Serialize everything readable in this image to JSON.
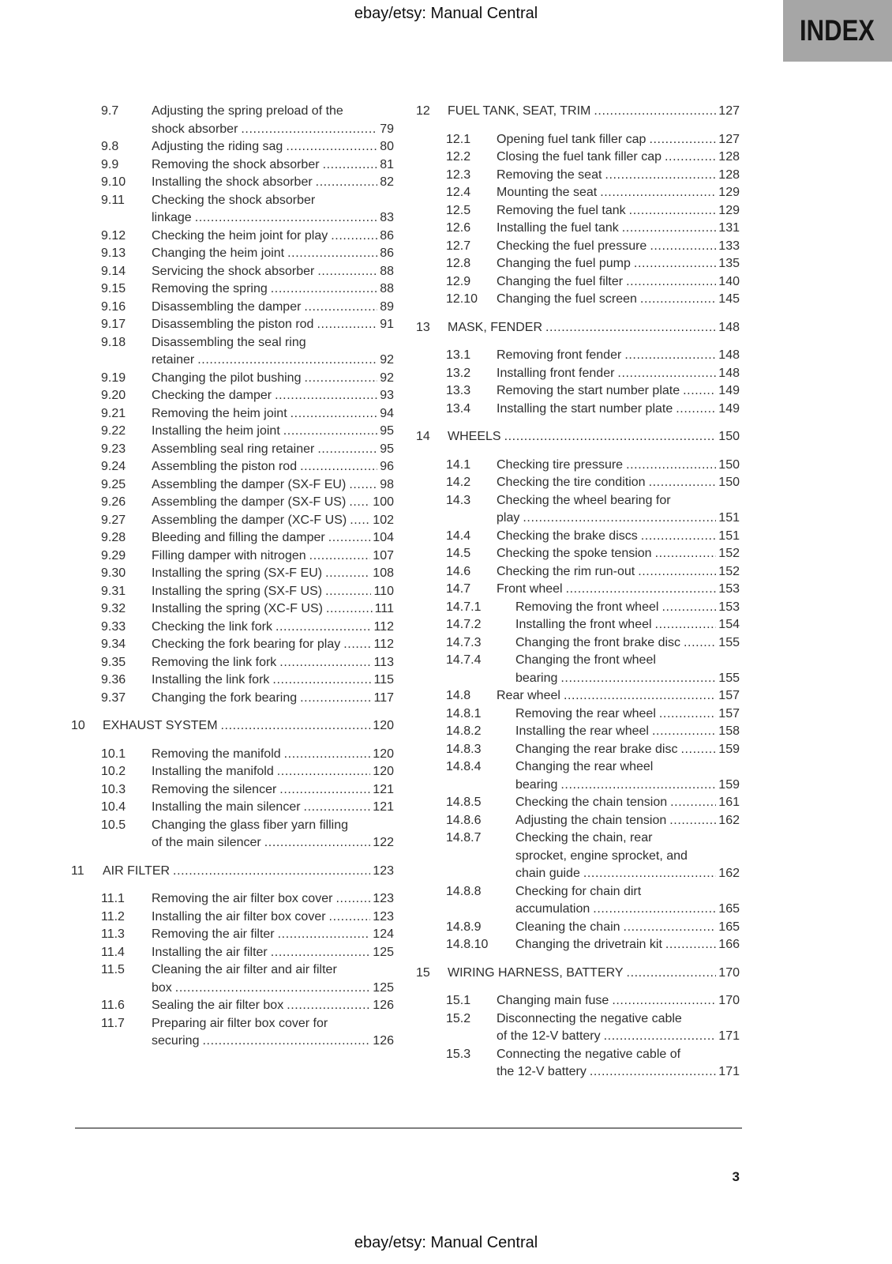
{
  "header": {
    "doc_title": "ebay/etsy: Manual Central",
    "index_label": "INDEX"
  },
  "footer": {
    "page_number": "3",
    "doc_title": "ebay/etsy: Manual Central"
  },
  "colors": {
    "index_badge_bg": "#a6a6a6",
    "body_text": "#2e2e2e",
    "footer_rule": "#7f7f7f"
  },
  "columns": [
    {
      "entries": [
        {
          "lvl": 2,
          "n": "9.7",
          "t": [
            "Adjusting the spring preload of the",
            "shock absorber"
          ],
          "p": "79"
        },
        {
          "lvl": 2,
          "n": "9.8",
          "t": [
            "Adjusting the riding sag"
          ],
          "p": "80"
        },
        {
          "lvl": 2,
          "n": "9.9",
          "t": [
            "Removing the shock absorber"
          ],
          "p": "81"
        },
        {
          "lvl": 2,
          "n": "9.10",
          "t": [
            "Installing the shock absorber"
          ],
          "p": "82"
        },
        {
          "lvl": 2,
          "n": "9.11",
          "t": [
            "Checking the shock absorber",
            "linkage"
          ],
          "p": "83"
        },
        {
          "lvl": 2,
          "n": "9.12",
          "t": [
            "Checking the heim joint for play"
          ],
          "p": "86"
        },
        {
          "lvl": 2,
          "n": "9.13",
          "t": [
            "Changing the heim joint"
          ],
          "p": "86"
        },
        {
          "lvl": 2,
          "n": "9.14",
          "t": [
            "Servicing the shock absorber"
          ],
          "p": "88"
        },
        {
          "lvl": 2,
          "n": "9.15",
          "t": [
            "Removing the spring"
          ],
          "p": "88"
        },
        {
          "lvl": 2,
          "n": "9.16",
          "t": [
            "Disassembling the damper"
          ],
          "p": "89"
        },
        {
          "lvl": 2,
          "n": "9.17",
          "t": [
            "Disassembling the piston rod"
          ],
          "p": "91"
        },
        {
          "lvl": 2,
          "n": "9.18",
          "t": [
            "Disassembling the seal ring",
            "retainer"
          ],
          "p": "92"
        },
        {
          "lvl": 2,
          "n": "9.19",
          "t": [
            "Changing the pilot bushing"
          ],
          "p": "92"
        },
        {
          "lvl": 2,
          "n": "9.20",
          "t": [
            "Checking the damper"
          ],
          "p": "93"
        },
        {
          "lvl": 2,
          "n": "9.21",
          "t": [
            "Removing the heim joint"
          ],
          "p": "94"
        },
        {
          "lvl": 2,
          "n": "9.22",
          "t": [
            "Installing the heim joint"
          ],
          "p": "95"
        },
        {
          "lvl": 2,
          "n": "9.23",
          "t": [
            "Assembling seal ring retainer"
          ],
          "p": "95"
        },
        {
          "lvl": 2,
          "n": "9.24",
          "t": [
            "Assembling the piston rod"
          ],
          "p": "96"
        },
        {
          "lvl": 2,
          "n": "9.25",
          "t": [
            "Assembling the damper (SX-F EU)"
          ],
          "p": "98"
        },
        {
          "lvl": 2,
          "n": "9.26",
          "t": [
            "Assembling the damper (SX-F US)"
          ],
          "p": "100"
        },
        {
          "lvl": 2,
          "n": "9.27",
          "t": [
            "Assembling the damper (XC-F US)"
          ],
          "p": "102"
        },
        {
          "lvl": 2,
          "n": "9.28",
          "t": [
            "Bleeding and filling the damper"
          ],
          "p": "104"
        },
        {
          "lvl": 2,
          "n": "9.29",
          "t": [
            "Filling damper with nitrogen"
          ],
          "p": "107"
        },
        {
          "lvl": 2,
          "n": "9.30",
          "t": [
            "Installing the spring (SX-F EU)"
          ],
          "p": "108"
        },
        {
          "lvl": 2,
          "n": "9.31",
          "t": [
            "Installing the spring (SX-F US)"
          ],
          "p": "110"
        },
        {
          "lvl": 2,
          "n": "9.32",
          "t": [
            "Installing the spring (XC-F US)"
          ],
          "p": "111"
        },
        {
          "lvl": 2,
          "n": "9.33",
          "t": [
            "Checking the link fork"
          ],
          "p": "112"
        },
        {
          "lvl": 2,
          "n": "9.34",
          "t": [
            "Checking the fork bearing for play"
          ],
          "p": "112"
        },
        {
          "lvl": 2,
          "n": "9.35",
          "t": [
            "Removing the link fork"
          ],
          "p": "113"
        },
        {
          "lvl": 2,
          "n": "9.36",
          "t": [
            "Installing the link fork"
          ],
          "p": "115"
        },
        {
          "lvl": 2,
          "n": "9.37",
          "t": [
            "Changing the fork bearing"
          ],
          "p": "117"
        },
        {
          "lvl": 1,
          "n": "10",
          "t": [
            "EXHAUST SYSTEM"
          ],
          "p": "120"
        },
        {
          "lvl": 2,
          "n": "10.1",
          "t": [
            "Removing the manifold"
          ],
          "p": "120"
        },
        {
          "lvl": 2,
          "n": "10.2",
          "t": [
            "Installing the manifold"
          ],
          "p": "120"
        },
        {
          "lvl": 2,
          "n": "10.3",
          "t": [
            "Removing the silencer"
          ],
          "p": "121"
        },
        {
          "lvl": 2,
          "n": "10.4",
          "t": [
            "Installing the main silencer"
          ],
          "p": "121"
        },
        {
          "lvl": 2,
          "n": "10.5",
          "t": [
            "Changing the glass fiber yarn filling",
            "of the main silencer"
          ],
          "p": "122"
        },
        {
          "lvl": 1,
          "n": "11",
          "t": [
            "AIR FILTER"
          ],
          "p": "123"
        },
        {
          "lvl": 2,
          "n": "11.1",
          "t": [
            "Removing the air filter box cover"
          ],
          "p": "123"
        },
        {
          "lvl": 2,
          "n": "11.2",
          "t": [
            "Installing the air filter box cover"
          ],
          "p": "123"
        },
        {
          "lvl": 2,
          "n": "11.3",
          "t": [
            "Removing the air filter"
          ],
          "p": "124"
        },
        {
          "lvl": 2,
          "n": "11.4",
          "t": [
            "Installing the air filter"
          ],
          "p": "125"
        },
        {
          "lvl": 2,
          "n": "11.5",
          "t": [
            "Cleaning the air filter and air filter",
            "box"
          ],
          "p": "125"
        },
        {
          "lvl": 2,
          "n": "11.6",
          "t": [
            "Sealing the air filter box"
          ],
          "p": "126"
        },
        {
          "lvl": 2,
          "n": "11.7",
          "t": [
            "Preparing air filter box cover for",
            "securing"
          ],
          "p": "126"
        }
      ]
    },
    {
      "entries": [
        {
          "lvl": 1,
          "n": "12",
          "t": [
            "FUEL TANK, SEAT, TRIM"
          ],
          "p": "127"
        },
        {
          "lvl": 2,
          "n": "12.1",
          "t": [
            "Opening fuel tank filler cap"
          ],
          "p": "127"
        },
        {
          "lvl": 2,
          "n": "12.2",
          "t": [
            "Closing the fuel tank filler cap"
          ],
          "p": "128"
        },
        {
          "lvl": 2,
          "n": "12.3",
          "t": [
            "Removing the seat"
          ],
          "p": "128"
        },
        {
          "lvl": 2,
          "n": "12.4",
          "t": [
            "Mounting the seat"
          ],
          "p": "129"
        },
        {
          "lvl": 2,
          "n": "12.5",
          "t": [
            "Removing the fuel tank"
          ],
          "p": "129"
        },
        {
          "lvl": 2,
          "n": "12.6",
          "t": [
            "Installing the fuel tank"
          ],
          "p": "131"
        },
        {
          "lvl": 2,
          "n": "12.7",
          "t": [
            "Checking the fuel pressure"
          ],
          "p": "133"
        },
        {
          "lvl": 2,
          "n": "12.8",
          "t": [
            "Changing the fuel pump"
          ],
          "p": "135"
        },
        {
          "lvl": 2,
          "n": "12.9",
          "t": [
            "Changing the fuel filter"
          ],
          "p": "140"
        },
        {
          "lvl": 2,
          "n": "12.10",
          "t": [
            "Changing the fuel screen"
          ],
          "p": "145"
        },
        {
          "lvl": 1,
          "n": "13",
          "t": [
            "MASK, FENDER"
          ],
          "p": "148"
        },
        {
          "lvl": 2,
          "n": "13.1",
          "t": [
            "Removing front fender"
          ],
          "p": "148"
        },
        {
          "lvl": 2,
          "n": "13.2",
          "t": [
            "Installing front fender"
          ],
          "p": "148"
        },
        {
          "lvl": 2,
          "n": "13.3",
          "t": [
            "Removing the start number plate"
          ],
          "p": "149"
        },
        {
          "lvl": 2,
          "n": "13.4",
          "t": [
            "Installing the start number plate"
          ],
          "p": "149"
        },
        {
          "lvl": 1,
          "n": "14",
          "t": [
            "WHEELS"
          ],
          "p": "150"
        },
        {
          "lvl": 2,
          "n": "14.1",
          "t": [
            "Checking tire pressure"
          ],
          "p": "150"
        },
        {
          "lvl": 2,
          "n": "14.2",
          "t": [
            "Checking the tire condition"
          ],
          "p": "150"
        },
        {
          "lvl": 2,
          "n": "14.3",
          "t": [
            "Checking the wheel bearing for",
            "play"
          ],
          "p": "151"
        },
        {
          "lvl": 2,
          "n": "14.4",
          "t": [
            "Checking the brake discs"
          ],
          "p": "151"
        },
        {
          "lvl": 2,
          "n": "14.5",
          "t": [
            "Checking the spoke tension"
          ],
          "p": "152"
        },
        {
          "lvl": 2,
          "n": "14.6",
          "t": [
            "Checking the rim run-out"
          ],
          "p": "152"
        },
        {
          "lvl": 2,
          "n": "14.7",
          "t": [
            "Front wheel"
          ],
          "p": "153"
        },
        {
          "lvl": 3,
          "n": "14.7.1",
          "t": [
            "Removing the front wheel"
          ],
          "p": "153"
        },
        {
          "lvl": 3,
          "n": "14.7.2",
          "t": [
            "Installing the front wheel"
          ],
          "p": "154"
        },
        {
          "lvl": 3,
          "n": "14.7.3",
          "t": [
            "Changing the front brake disc"
          ],
          "p": "155"
        },
        {
          "lvl": 3,
          "n": "14.7.4",
          "t": [
            "Changing the front wheel",
            "bearing"
          ],
          "p": "155"
        },
        {
          "lvl": 2,
          "n": "14.8",
          "t": [
            "Rear wheel"
          ],
          "p": "157"
        },
        {
          "lvl": 3,
          "n": "14.8.1",
          "t": [
            "Removing the rear wheel"
          ],
          "p": "157"
        },
        {
          "lvl": 3,
          "n": "14.8.2",
          "t": [
            "Installing the rear wheel"
          ],
          "p": "158"
        },
        {
          "lvl": 3,
          "n": "14.8.3",
          "t": [
            "Changing the rear brake disc"
          ],
          "p": "159"
        },
        {
          "lvl": 3,
          "n": "14.8.4",
          "t": [
            "Changing the rear wheel",
            "bearing"
          ],
          "p": "159"
        },
        {
          "lvl": 3,
          "n": "14.8.5",
          "t": [
            "Checking the chain tension"
          ],
          "p": "161"
        },
        {
          "lvl": 3,
          "n": "14.8.6",
          "t": [
            "Adjusting the chain tension"
          ],
          "p": "162"
        },
        {
          "lvl": 3,
          "n": "14.8.7",
          "t": [
            "Checking the chain, rear",
            "sprocket, engine sprocket, and",
            "chain guide"
          ],
          "p": "162"
        },
        {
          "lvl": 3,
          "n": "14.8.8",
          "t": [
            "Checking for chain dirt",
            "accumulation"
          ],
          "p": "165"
        },
        {
          "lvl": 3,
          "n": "14.8.9",
          "t": [
            "Cleaning the chain"
          ],
          "p": "165"
        },
        {
          "lvl": 3,
          "n": "14.8.10",
          "t": [
            "Changing the drivetrain kit"
          ],
          "p": "166"
        },
        {
          "lvl": 1,
          "n": "15",
          "t": [
            "WIRING HARNESS, BATTERY"
          ],
          "p": "170"
        },
        {
          "lvl": 2,
          "n": "15.1",
          "t": [
            "Changing main fuse"
          ],
          "p": "170"
        },
        {
          "lvl": 2,
          "n": "15.2",
          "t": [
            "Disconnecting the negative cable",
            "of the 12-V battery"
          ],
          "p": "171"
        },
        {
          "lvl": 2,
          "n": "15.3",
          "t": [
            "Connecting the negative cable of",
            "the 12-V battery"
          ],
          "p": "171"
        }
      ]
    }
  ]
}
